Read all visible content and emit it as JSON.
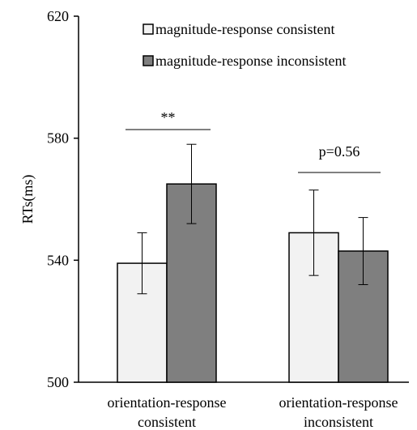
{
  "chart_data": {
    "type": "bar",
    "ylabel": "RTs(ms)",
    "ylim": [
      500,
      620
    ],
    "yticks": [
      "500",
      "540",
      "580",
      "620"
    ],
    "grid": false,
    "legend_position": "top-right",
    "categories": [
      [
        "orientation-response",
        "consistent"
      ],
      [
        "orientation-response",
        "inconsistent"
      ]
    ],
    "series": [
      {
        "name": "magnitude-response consistent",
        "color": "#f2f2f2",
        "values": [
          539,
          549
        ],
        "error": [
          10,
          14
        ]
      },
      {
        "name": "magnitude-response inconsistent",
        "color": "#7f7f7f",
        "values": [
          565,
          543
        ],
        "error": [
          13,
          11
        ]
      }
    ],
    "annotations": [
      {
        "category_index": 0,
        "text": "**"
      },
      {
        "category_index": 1,
        "text": "p=0.56"
      }
    ]
  }
}
